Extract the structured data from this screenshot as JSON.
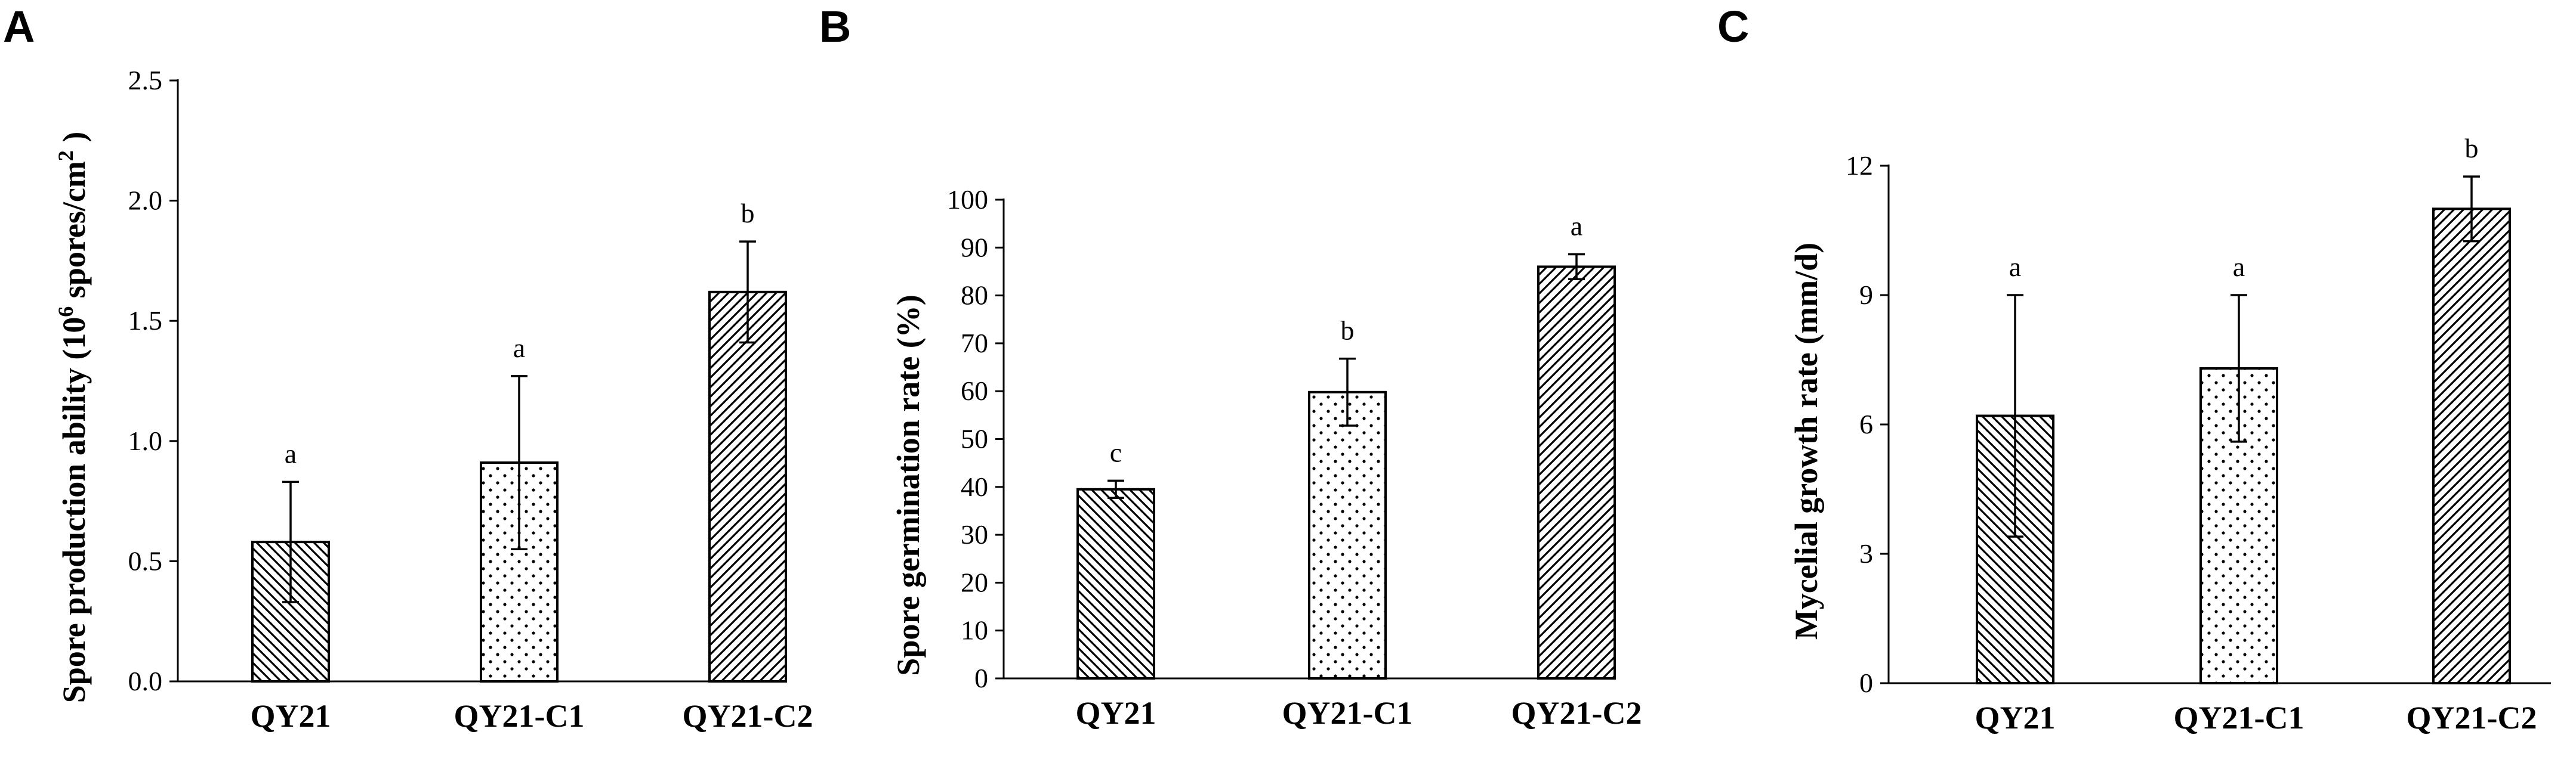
{
  "chart_data": [
    {
      "type": "bar",
      "panel": "A",
      "categories": [
        "QY21",
        "QY21-C1",
        "QY21-C2"
      ],
      "values": [
        0.58,
        0.91,
        1.62
      ],
      "errors": [
        0.25,
        0.36,
        0.21
      ],
      "significance": [
        "a",
        "a",
        "b"
      ],
      "patterns": [
        "backslash",
        "dots",
        "slash"
      ],
      "ylabel_parts": [
        "Spore production ability (10",
        "6",
        " spores/cm",
        "2",
        " )"
      ],
      "yticks": [
        0.0,
        0.5,
        1.0,
        1.5,
        2.0,
        2.5
      ],
      "tick_labels": [
        "0.0",
        "0.5",
        "1.0",
        "1.5",
        "2.0",
        "2.5"
      ],
      "ylim": [
        0,
        2.5
      ],
      "xlabel": "",
      "title": ""
    },
    {
      "type": "bar",
      "panel": "B",
      "categories": [
        "QY21",
        "QY21-C1",
        "QY21-C2"
      ],
      "values": [
        39.5,
        59.8,
        86.0
      ],
      "errors": [
        1.8,
        7.0,
        2.6
      ],
      "significance": [
        "c",
        "b",
        "a"
      ],
      "patterns": [
        "backslash",
        "dots",
        "slash"
      ],
      "ylabel": "Spore germination rate (%)",
      "yticks": [
        0,
        10,
        20,
        30,
        40,
        50,
        60,
        70,
        80,
        90,
        100
      ],
      "tick_labels": [
        "0",
        "10",
        "20",
        "30",
        "40",
        "50",
        "60",
        "70",
        "80",
        "90",
        "100"
      ],
      "ylim": [
        0,
        100
      ],
      "xlabel": "",
      "title": ""
    },
    {
      "type": "bar",
      "panel": "C",
      "categories": [
        "QY21",
        "QY21-C1",
        "QY21-C2"
      ],
      "values": [
        6.2,
        7.3,
        11.0
      ],
      "errors": [
        2.8,
        1.7,
        0.75
      ],
      "significance": [
        "a",
        "a",
        "b"
      ],
      "patterns": [
        "backslash",
        "dots",
        "slash"
      ],
      "ylabel": "Mycelial growth rate (mm/d)",
      "yticks": [
        0,
        3,
        6,
        9,
        12
      ],
      "tick_labels": [
        "0",
        "3",
        "6",
        "9",
        "12"
      ],
      "ylim": [
        0,
        12
      ],
      "xlabel": "",
      "title": ""
    }
  ],
  "colors": {
    "ink": "#000000",
    "background": "#ffffff"
  }
}
